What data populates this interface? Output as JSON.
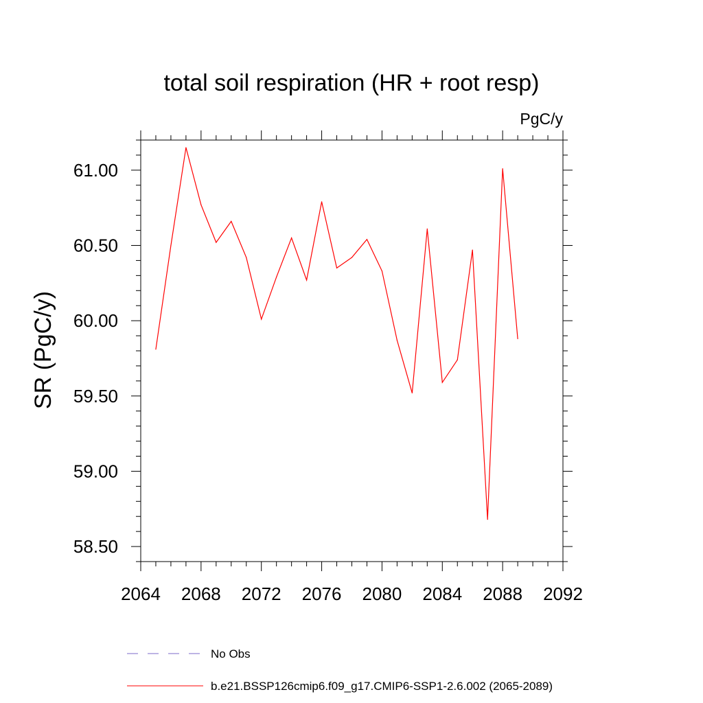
{
  "chart_data": {
    "type": "line",
    "title": "total soil respiration (HR + root resp)",
    "units_label": "PgC/y",
    "ylabel": "SR  (PgC/y)",
    "xlabel": "",
    "xlim": [
      2064,
      2092
    ],
    "ylim": [
      58.4,
      61.2
    ],
    "x_ticks": [
      2064,
      2068,
      2072,
      2076,
      2080,
      2084,
      2088,
      2092
    ],
    "x_tick_labels": [
      "2064",
      "2068",
      "2072",
      "2076",
      "2080",
      "2084",
      "2088",
      "2092"
    ],
    "x_minor_step": 1,
    "y_ticks": [
      58.5,
      59.0,
      59.5,
      60.0,
      60.5,
      61.0
    ],
    "y_tick_labels": [
      "58.50",
      "59.00",
      "59.50",
      "60.00",
      "60.50",
      "61.00"
    ],
    "y_minor_step": 0.1,
    "grid": false,
    "legend_position": "bottom",
    "series": [
      {
        "name": "b.e21.BSSP126cmip6.f09_g17.CMIP6-SSP1-2.6.002 (2065-2089)",
        "color": "#ff0000",
        "style": "solid",
        "x": [
          2065,
          2066,
          2067,
          2068,
          2069,
          2070,
          2071,
          2072,
          2073,
          2074,
          2075,
          2076,
          2077,
          2078,
          2079,
          2080,
          2081,
          2082,
          2083,
          2084,
          2085,
          2086,
          2087,
          2088,
          2089
        ],
        "values": [
          59.81,
          60.5,
          61.15,
          60.77,
          60.52,
          60.66,
          60.42,
          60.01,
          60.29,
          60.55,
          60.27,
          60.79,
          60.35,
          60.42,
          60.54,
          60.33,
          59.87,
          59.52,
          60.61,
          59.59,
          59.74,
          60.47,
          58.68,
          61.01,
          59.88
        ]
      }
    ],
    "legend": [
      {
        "label": "No Obs",
        "color": "#7b68c8",
        "style": "dashed"
      },
      {
        "label": "b.e21.BSSP126cmip6.f09_g17.CMIP6-SSP1-2.6.002 (2065-2089)",
        "color": "#ff0000",
        "style": "solid"
      }
    ]
  }
}
